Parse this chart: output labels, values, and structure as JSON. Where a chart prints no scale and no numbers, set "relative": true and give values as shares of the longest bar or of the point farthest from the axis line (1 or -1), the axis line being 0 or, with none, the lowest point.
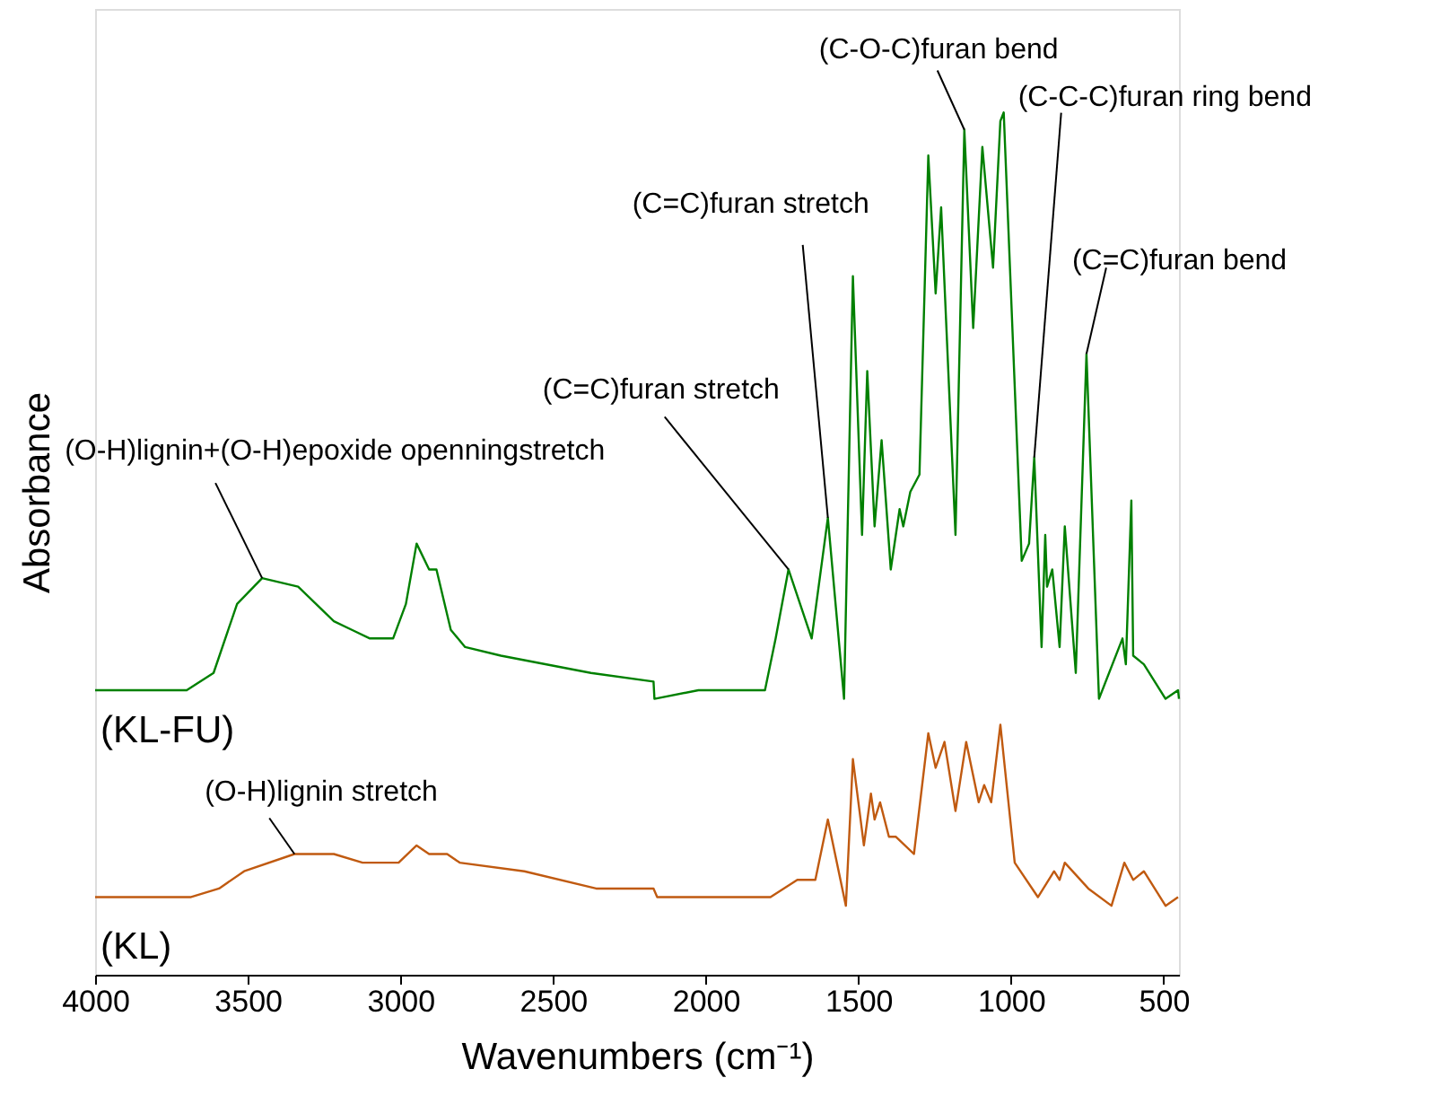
{
  "chart_data": {
    "type": "line",
    "relative": true,
    "xlabel": "Wavenumbers (cm⁻¹)",
    "ylabel": "Absorbance",
    "xlim": [
      4000,
      450
    ],
    "xticks": [
      4000,
      3500,
      3000,
      2500,
      2000,
      1500,
      1000,
      500
    ],
    "series": [
      {
        "name": "(KL-FU)",
        "color": "#008000",
        "x": [
          4000,
          3700,
          3612,
          3535,
          3453,
          3335,
          3218,
          3159,
          3100,
          3024,
          2982,
          2947,
          2906,
          2882,
          2835,
          2788,
          2671,
          2376,
          2171,
          2168,
          2024,
          1924,
          1806,
          1771,
          1729,
          1653,
          1600,
          1547,
          1518,
          1488,
          1471,
          1447,
          1424,
          1394,
          1365,
          1353,
          1330,
          1300,
          1271,
          1247,
          1229,
          1182,
          1153,
          1124,
          1094,
          1059,
          1035,
          1024,
          965,
          941,
          924,
          900,
          888,
          882,
          865,
          841,
          824,
          788,
          753,
          712,
          635,
          624,
          606,
          600,
          565,
          494,
          453,
          450
        ],
        "values": [
          0.33,
          0.33,
          0.35,
          0.43,
          0.46,
          0.45,
          0.41,
          0.4,
          0.39,
          0.39,
          0.43,
          0.5,
          0.47,
          0.47,
          0.4,
          0.38,
          0.37,
          0.35,
          0.34,
          0.32,
          0.33,
          0.33,
          0.33,
          0.39,
          0.47,
          0.39,
          0.53,
          0.32,
          0.81,
          0.51,
          0.7,
          0.52,
          0.62,
          0.47,
          0.54,
          0.52,
          0.56,
          0.58,
          0.95,
          0.79,
          0.89,
          0.51,
          0.98,
          0.75,
          0.96,
          0.82,
          0.99,
          1,
          0.48,
          0.5,
          0.6,
          0.38,
          0.51,
          0.45,
          0.47,
          0.38,
          0.52,
          0.35,
          0.72,
          0.32,
          0.39,
          0.36,
          0.55,
          0.37,
          0.36,
          0.32,
          0.33,
          0.32
        ]
      },
      {
        "name": "(KL)",
        "color": "#c05a10",
        "x": [
          4000,
          3688,
          3594,
          3512,
          3347,
          3218,
          3124,
          3006,
          2947,
          2906,
          2847,
          2806,
          2594,
          2359,
          2171,
          2159,
          1982,
          1788,
          1700,
          1641,
          1600,
          1541,
          1518,
          1482,
          1459,
          1447,
          1429,
          1400,
          1377,
          1318,
          1271,
          1247,
          1218,
          1182,
          1147,
          1106,
          1088,
          1065,
          1035,
          988,
          912,
          859,
          841,
          824,
          747,
          671,
          629,
          600,
          565,
          494,
          453
        ],
        "values": [
          0.09,
          0.09,
          0.1,
          0.12,
          0.14,
          0.14,
          0.13,
          0.13,
          0.15,
          0.14,
          0.14,
          0.13,
          0.12,
          0.1,
          0.1,
          0.09,
          0.09,
          0.09,
          0.11,
          0.11,
          0.18,
          0.08,
          0.25,
          0.15,
          0.21,
          0.18,
          0.2,
          0.16,
          0.16,
          0.14,
          0.28,
          0.24,
          0.27,
          0.19,
          0.27,
          0.2,
          0.22,
          0.2,
          0.29,
          0.13,
          0.09,
          0.12,
          0.11,
          0.13,
          0.1,
          0.08,
          0.13,
          0.11,
          0.12,
          0.08,
          0.09
        ]
      }
    ],
    "annotations": [
      {
        "text": "(O-H)lignin+(O-H)epoxide openningstretch",
        "x": 3453,
        "y": 0.46
      },
      {
        "text": "(C=C)furan stretch",
        "x": 1729,
        "y": 0.47
      },
      {
        "text": "(C=C)furan stretch",
        "x": 1600,
        "y": 0.53
      },
      {
        "text": "(C-O-C)furan bend",
        "x": 1153,
        "y": 0.98
      },
      {
        "text": "(C-C-C)furan ring  bend",
        "x": 924,
        "y": 0.6
      },
      {
        "text": "(C=C)furan bend",
        "x": 753,
        "y": 0.72
      },
      {
        "text": "(O-H)lignin stretch",
        "x": 3347,
        "y": 0.14
      }
    ]
  }
}
